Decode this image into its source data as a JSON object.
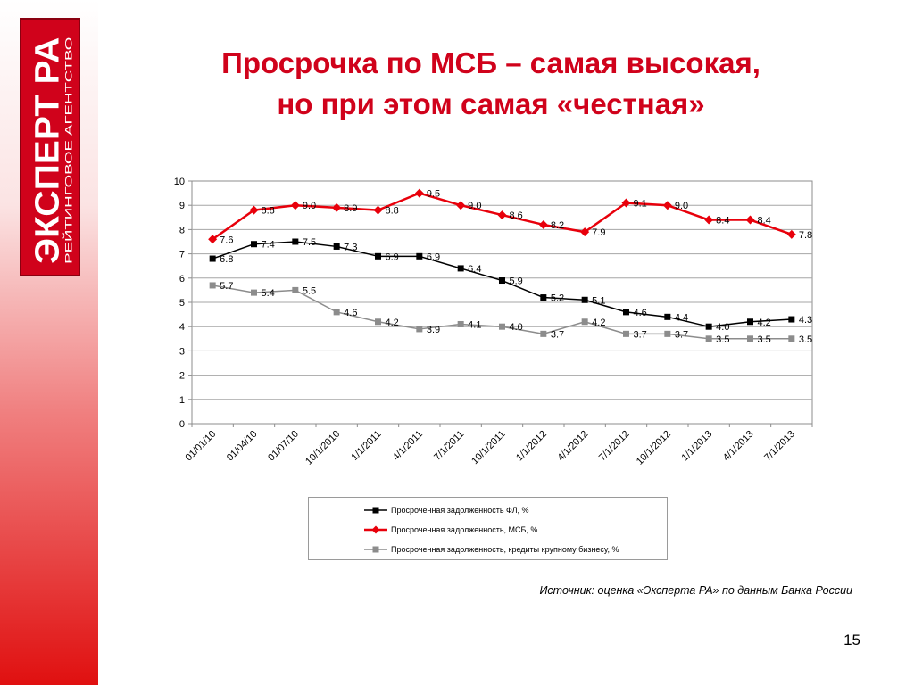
{
  "logo": {
    "brand": "ЭКСПЕРТ РА",
    "subtitle": "РЕЙТИНГОВОЕ АГЕНТСТВО"
  },
  "title": {
    "line1": "Просрочка по МСБ – самая высокая,",
    "line2": "но при этом самая «честная»"
  },
  "chart_data": {
    "type": "line",
    "categories": [
      "01/01/10",
      "01/04/10",
      "01/07/10",
      "10/1/2010",
      "1/1/2011",
      "4/1/2011",
      "7/1/2011",
      "10/1/2011",
      "1/1/2012",
      "4/1/2012",
      "7/1/2012",
      "10/1/2012",
      "1/1/2013",
      "4/1/2013",
      "7/1/2013"
    ],
    "x_tick_labels": [
      "01/01/10",
      "01/04/10",
      "01/07/10",
      "10/1/2010",
      "1/1/2011",
      "4/1/2011",
      "7/1/2011",
      "10/1/2011",
      "1/1/2012",
      "4/1/2012",
      "7/1/2012",
      "10/1/2012",
      "1/1/2013",
      "4/1/2013",
      "7/1/2013"
    ],
    "y_ticks": [
      0,
      1,
      2,
      3,
      4,
      5,
      6,
      7,
      8,
      9,
      10
    ],
    "ylim": [
      0,
      10
    ],
    "grid": "horizontal",
    "legend_position": "bottom",
    "series": [
      {
        "name": "Просроченная задолженность ФЛ, %",
        "color": "#000000",
        "marker": "square",
        "values": [
          6.8,
          7.4,
          7.5,
          7.3,
          6.9,
          6.9,
          6.4,
          5.9,
          5.2,
          5.1,
          4.6,
          4.4,
          4.0,
          4.2,
          4.3
        ],
        "labels": [
          "6.8",
          "7.4",
          "7.5",
          "7.3",
          "6.9",
          "6.9",
          "6.4",
          "5.9",
          "5.2",
          "5.1",
          "4.6",
          "4.4",
          "4.0",
          "4.2",
          "4.3"
        ]
      },
      {
        "name": "Просроченная задолженность, МСБ, %",
        "color": "#e8000b",
        "marker": "diamond",
        "values": [
          7.6,
          8.8,
          9.0,
          8.9,
          8.8,
          9.5,
          9.0,
          8.6,
          8.2,
          7.9,
          9.1,
          9.0,
          8.4,
          8.4,
          7.8
        ],
        "labels": [
          "7.6",
          "8.8",
          "9.0",
          "8.9",
          "8.8",
          "9.5",
          "9.0",
          "8.6",
          "8.2",
          "7.9",
          "9.1",
          "9.0",
          "8.4",
          "8.4",
          "7.8"
        ]
      },
      {
        "name": "Просроченная задолженность, кредиты крупному бизнесу, %",
        "color": "#8c8c8c",
        "marker": "square",
        "values": [
          5.7,
          5.4,
          5.5,
          4.6,
          4.2,
          3.9,
          4.1,
          4.0,
          3.7,
          4.2,
          3.7,
          3.7,
          3.5,
          3.5,
          3.5
        ],
        "labels": [
          "5.7",
          "5.4",
          "5.5",
          "4.6",
          "4.2",
          "3.9",
          "4.1",
          "4.0",
          "3.7",
          "4.2",
          "3.7",
          "3.7",
          "3.5",
          "3.5",
          "3.5"
        ]
      }
    ]
  },
  "source": "Источник: оценка «Эксперта РА» по данным Банка России",
  "page_number": "15"
}
